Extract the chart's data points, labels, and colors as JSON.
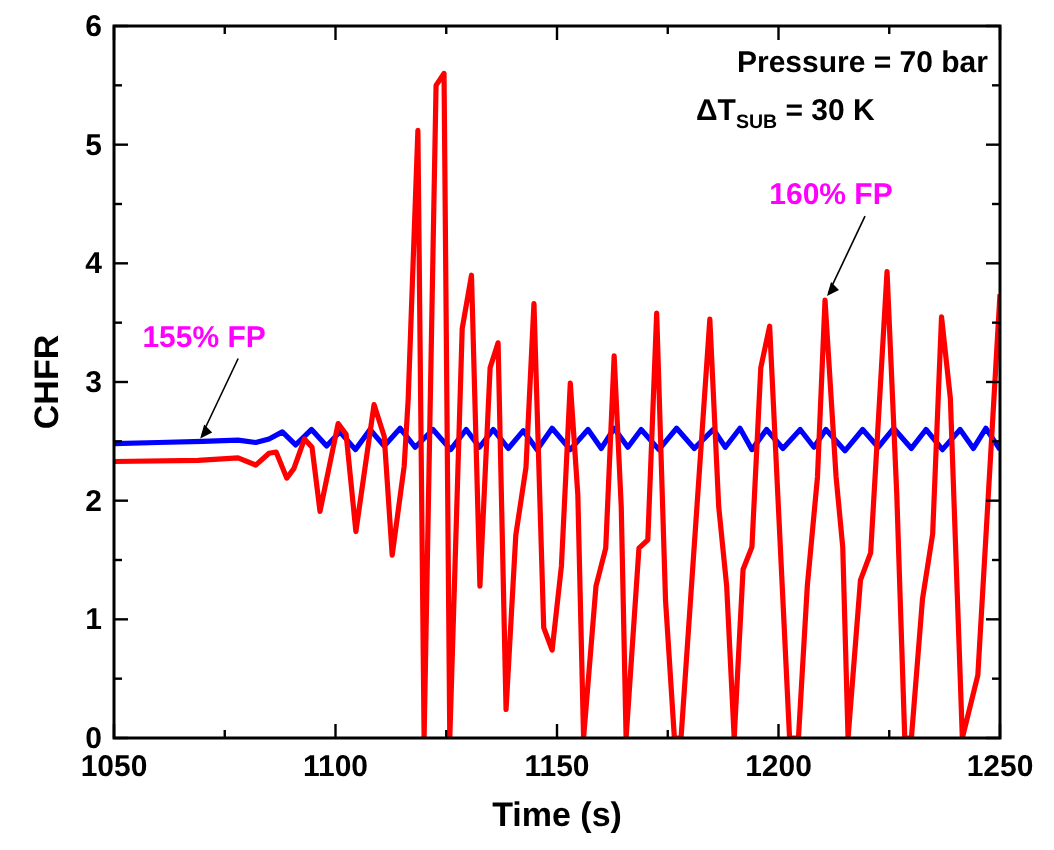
{
  "chart_data": {
    "type": "line",
    "xlabel": "Time (s)",
    "ylabel": "CHFR",
    "xlim": [
      1050,
      1250
    ],
    "ylim": [
      0,
      6
    ],
    "xticks": [
      1050,
      {
        "value": 1075,
        "label": null
      },
      1100,
      {
        "value": 1125,
        "label": null
      },
      1150,
      {
        "value": 1175,
        "label": null
      },
      1200,
      {
        "value": 1225,
        "label": null
      },
      1250
    ],
    "yticks": [
      0,
      {
        "value": 0.5,
        "label": null
      },
      1,
      {
        "value": 1.5,
        "label": null
      },
      2,
      {
        "value": 2.5,
        "label": null
      },
      3,
      {
        "value": 3.5,
        "label": null
      },
      4,
      {
        "value": 4.5,
        "label": null
      },
      5,
      {
        "value": 5.5,
        "label": null
      },
      6
    ],
    "grid": false,
    "line_style": "solid",
    "marker": "none",
    "series": [
      {
        "color": "#0000ff",
        "x": [
          1050,
          1060,
          1070,
          1078,
          1082,
          1085,
          1088,
          1091,
          1094.6,
          1098,
          1101,
          1104.5,
          1107.8,
          1111,
          1114.6,
          1118,
          1122,
          1126,
          1129.5,
          1132.5,
          1135.6,
          1139,
          1142.4,
          1145.5,
          1148.9,
          1153,
          1157,
          1160,
          1162.9,
          1166,
          1169,
          1173,
          1177,
          1181,
          1185.3,
          1188,
          1191.3,
          1194,
          1197.3,
          1201,
          1204.9,
          1208,
          1210.7,
          1215,
          1219,
          1222.5,
          1226,
          1230,
          1233.3,
          1237,
          1241,
          1244,
          1246.8,
          1250
        ],
        "values": [
          2.48,
          2.49,
          2.5,
          2.51,
          2.49,
          2.52,
          2.58,
          2.47,
          2.6,
          2.46,
          2.58,
          2.43,
          2.6,
          2.46,
          2.61,
          2.45,
          2.6,
          2.43,
          2.6,
          2.45,
          2.6,
          2.44,
          2.59,
          2.43,
          2.61,
          2.43,
          2.6,
          2.44,
          2.61,
          2.45,
          2.6,
          2.43,
          2.61,
          2.44,
          2.6,
          2.45,
          2.61,
          2.43,
          2.6,
          2.44,
          2.6,
          2.45,
          2.6,
          2.42,
          2.6,
          2.45,
          2.61,
          2.44,
          2.6,
          2.43,
          2.6,
          2.44,
          2.61,
          2.43
        ]
      },
      {
        "color": "#ff0000",
        "x": [
          1050,
          1069,
          1078,
          1082,
          1085,
          1086.6,
          1089,
          1090.6,
          1093,
          1094.7,
          1096.5,
          1100.6,
          1102.4,
          1104.6,
          1108.7,
          1111,
          1112.8,
          1115.5,
          1116.4,
          1118.6,
          1120,
          1122.7,
          1124.5,
          1125.8,
          1128.6,
          1130.7,
          1132.6,
          1134.9,
          1136.7,
          1138.5,
          1140.7,
          1143,
          1144.8,
          1147,
          1148.9,
          1151,
          1153,
          1154.7,
          1156,
          1158.8,
          1161,
          1162.9,
          1164.5,
          1165.6,
          1168.5,
          1170.5,
          1172.5,
          1174.5,
          1176.5,
          1178,
          1184.5,
          1186.5,
          1188.3,
          1190,
          1192,
          1194,
          1196,
          1198,
          1202.5,
          1204.5,
          1206.5,
          1208.8,
          1210.5,
          1213,
          1214.5,
          1215.7,
          1218.5,
          1220.8,
          1224.5,
          1226.7,
          1228.5,
          1230,
          1232.5,
          1234.8,
          1236.8,
          1238.8,
          1241.5,
          1245,
          1250
        ],
        "values": [
          2.33,
          2.34,
          2.36,
          2.3,
          2.4,
          2.41,
          2.19,
          2.27,
          2.52,
          2.45,
          1.91,
          2.65,
          2.56,
          1.74,
          2.81,
          2.54,
          1.54,
          2.29,
          2.85,
          5.12,
          0,
          5.5,
          5.6,
          0,
          3.45,
          3.9,
          1.28,
          3.12,
          3.33,
          0.24,
          1.71,
          2.28,
          3.66,
          0.93,
          0.74,
          1.45,
          2.99,
          2.05,
          0,
          1.28,
          1.6,
          3.22,
          1.95,
          0,
          1.6,
          1.67,
          3.58,
          1.16,
          0,
          0,
          3.53,
          1.95,
          1.28,
          0,
          1.42,
          1.61,
          3.12,
          3.47,
          0,
          0,
          1.28,
          2.2,
          3.69,
          2.2,
          1.61,
          0,
          1.33,
          1.56,
          3.93,
          2.05,
          0,
          0,
          1.17,
          1.72,
          3.55,
          2.86,
          0,
          0.53,
          3.74
        ]
      }
    ],
    "annotations": [
      {
        "text": "155% FP",
        "x": 1069,
        "y": 2.49
      },
      {
        "text": "160% FP",
        "x": 1210.5,
        "y": 3.69
      },
      "Pressure = 70 bar",
      "ΔT$_{SUB}$ = 30 K"
    ]
  }
}
